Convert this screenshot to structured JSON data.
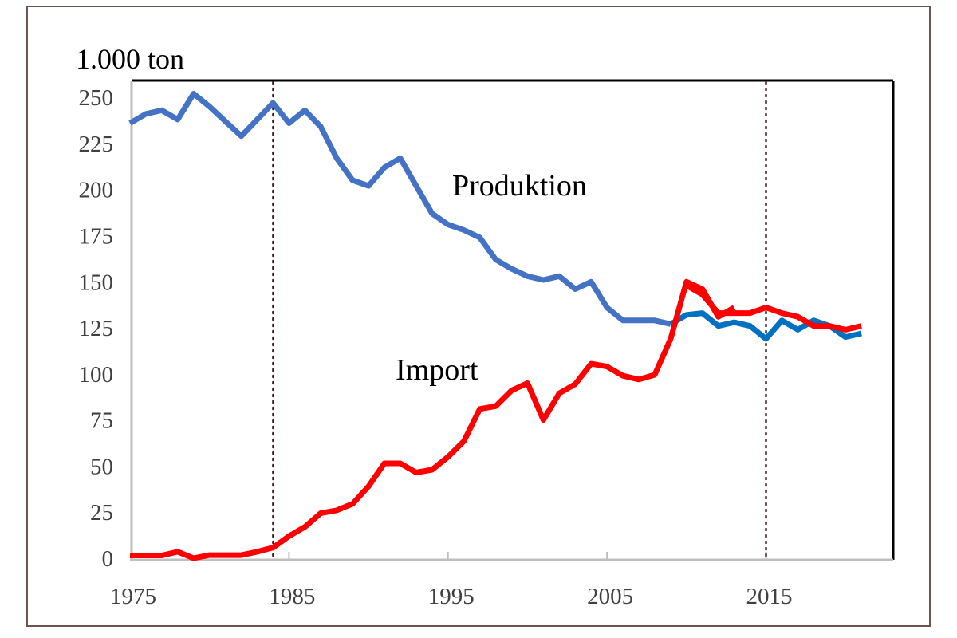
{
  "chart_data": {
    "type": "line",
    "title": "",
    "ylabel": "1.000 ton",
    "xlabel": "",
    "xlim": [
      1975,
      2023
    ],
    "ylim": [
      0,
      260
    ],
    "x_ticks": [
      "1975",
      "1985",
      "1995",
      "2005",
      "2015"
    ],
    "y_ticks": [
      "0",
      "25",
      "50",
      "75",
      "100",
      "125",
      "150",
      "175",
      "200",
      "225",
      "250"
    ],
    "grid": false,
    "vertical_reference_lines": [
      1984,
      2015
    ],
    "annotations": [
      {
        "text": "Produktion",
        "series": "produktion"
      },
      {
        "text": "Import",
        "series": "import"
      }
    ],
    "series": [
      {
        "id": "produktion",
        "color": "#4472C4",
        "x": [
          1975,
          1976,
          1977,
          1978,
          1979,
          1980,
          1981,
          1982,
          1983,
          1984,
          1985,
          1986,
          1987,
          1988,
          1989,
          1990,
          1991,
          1992,
          1993,
          1994,
          1995,
          1996,
          1997,
          1998,
          1999,
          2000,
          2001,
          2002,
          2003,
          2004,
          2005,
          2006,
          2007,
          2008,
          2009
        ],
        "values": [
          236,
          241,
          243,
          238,
          252,
          245,
          237,
          229,
          238,
          247,
          236,
          243,
          234,
          217,
          205,
          202,
          212,
          217,
          202,
          187,
          181,
          178,
          174,
          162,
          157,
          153,
          151,
          153,
          146,
          150,
          136,
          129,
          129,
          129,
          127
        ]
      },
      {
        "id": "produktion-revised",
        "color": "#0070C0",
        "x": [
          2009,
          2010,
          2011,
          2012,
          2013,
          2014,
          2015,
          2016,
          2017,
          2018,
          2019,
          2020,
          2021
        ],
        "values": [
          127,
          132,
          133,
          126,
          128,
          126,
          119,
          129,
          124,
          129,
          126,
          120,
          122
        ]
      },
      {
        "id": "import",
        "color": "#FF0000",
        "x": [
          1975,
          1976,
          1977,
          1978,
          1979,
          1980,
          1981,
          1982,
          1983,
          1984,
          1985,
          1986,
          1987,
          1988,
          1989,
          1990,
          1991,
          1992,
          1993,
          1994,
          1995,
          1996,
          1997,
          1998,
          1999,
          2000,
          2001,
          2002,
          2003,
          2004,
          2005,
          2006,
          2007,
          2008,
          2009,
          2010,
          2011,
          2012,
          2013
        ],
        "values": [
          1.5,
          1.5,
          1.5,
          3.5,
          0,
          1.7,
          1.7,
          1.7,
          3.5,
          5.8,
          12,
          17,
          24.5,
          26,
          29.5,
          39,
          51.5,
          51.5,
          46.5,
          48,
          55,
          63.5,
          81,
          82.5,
          91,
          95,
          75,
          89.5,
          94.5,
          105.5,
          104,
          99,
          97,
          99.5,
          119,
          150,
          146,
          131,
          136
        ]
      },
      {
        "id": "import-revised",
        "color": "#FF0000",
        "x": [
          2010,
          2011,
          2012,
          2013,
          2014,
          2015,
          2016,
          2017,
          2018,
          2019,
          2020,
          2021
        ],
        "values": [
          148,
          143,
          133,
          133,
          133,
          136,
          133,
          131,
          126,
          126,
          124,
          126
        ]
      }
    ]
  }
}
